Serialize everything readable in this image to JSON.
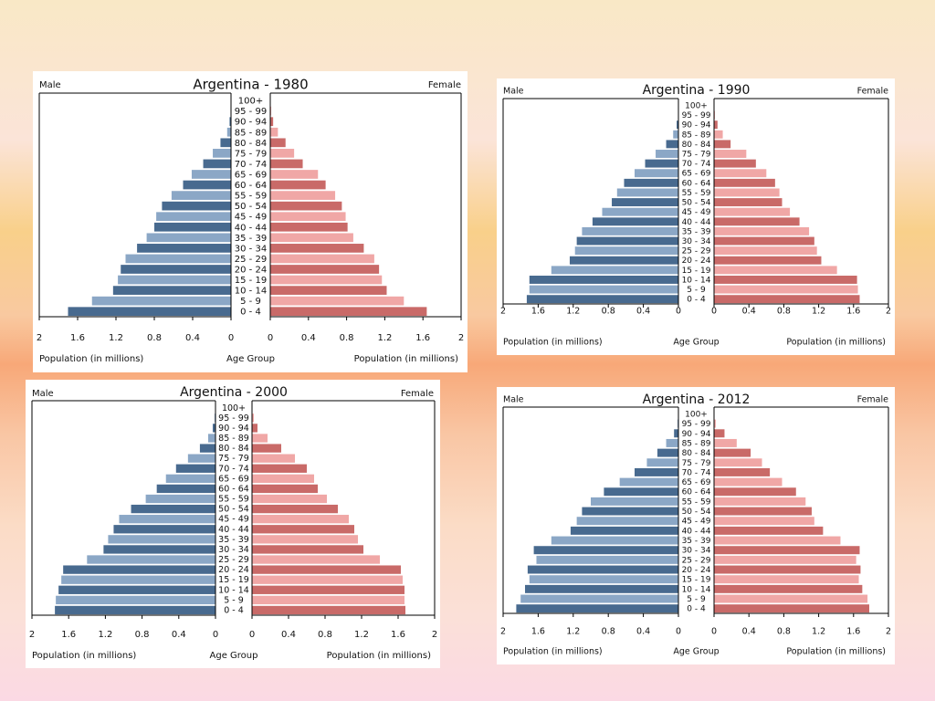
{
  "colors": {
    "male_dark": "#486a8f",
    "male_light": "#8ba7c6",
    "female_dark": "#c96a68",
    "female_light": "#f0a7a6"
  },
  "chart_data": [
    {
      "type": "bar",
      "subtype": "population-pyramid",
      "title": "Argentina - 1980",
      "left_label": "Male",
      "right_label": "Female",
      "xlabel_left": "Population (in millions)",
      "xlabel_center": "Age Group",
      "xlabel_right": "Population (in millions)",
      "xlim": [
        0,
        2
      ],
      "xticks": [
        "2",
        "1.6",
        "1.2",
        "0.8",
        "0.4",
        "0"
      ],
      "xticks_right": [
        "0",
        "0.4",
        "0.8",
        "1.2",
        "1.6",
        "2"
      ],
      "categories": [
        "0 - 4",
        "5 - 9",
        "10 - 14",
        "15 - 19",
        "20 - 24",
        "25 - 29",
        "30 - 34",
        "35 - 39",
        "40 - 44",
        "45 - 49",
        "50 - 54",
        "55 - 59",
        "60 - 64",
        "65 - 69",
        "70 - 74",
        "75 - 79",
        "80 - 84",
        "85 - 89",
        "90 - 94",
        "95 - 99",
        "100+"
      ],
      "series": [
        {
          "name": "Male",
          "values": [
            1.7,
            1.45,
            1.23,
            1.18,
            1.15,
            1.1,
            0.98,
            0.88,
            0.8,
            0.78,
            0.72,
            0.62,
            0.5,
            0.41,
            0.29,
            0.19,
            0.11,
            0.04,
            0.015,
            0.005,
            0.002
          ]
        },
        {
          "name": "Female",
          "values": [
            1.64,
            1.4,
            1.22,
            1.17,
            1.14,
            1.09,
            0.98,
            0.87,
            0.81,
            0.79,
            0.75,
            0.68,
            0.58,
            0.5,
            0.34,
            0.25,
            0.16,
            0.08,
            0.03,
            0.01,
            0.003
          ]
        }
      ]
    },
    {
      "type": "bar",
      "subtype": "population-pyramid",
      "title": "Argentina - 1990",
      "left_label": "Male",
      "right_label": "Female",
      "xlabel_left": "Population (in millions)",
      "xlabel_center": "Age Group",
      "xlabel_right": "Population (in millions)",
      "xlim": [
        0,
        2
      ],
      "xticks": [
        "2",
        "1.6",
        "1.2",
        "0.8",
        "0.4",
        "0"
      ],
      "xticks_right": [
        "0",
        "0.4",
        "0.8",
        "1.2",
        "1.6",
        "2"
      ],
      "categories": [
        "0 - 4",
        "5 - 9",
        "10 - 14",
        "15 - 19",
        "20 - 24",
        "25 - 29",
        "30 - 34",
        "35 - 39",
        "40 - 44",
        "45 - 49",
        "50 - 54",
        "55 - 59",
        "60 - 64",
        "65 - 69",
        "70 - 74",
        "75 - 79",
        "80 - 84",
        "85 - 89",
        "90 - 94",
        "95 - 99",
        "100+"
      ],
      "series": [
        {
          "name": "Male",
          "values": [
            1.73,
            1.7,
            1.7,
            1.45,
            1.24,
            1.18,
            1.16,
            1.1,
            0.98,
            0.87,
            0.76,
            0.7,
            0.62,
            0.5,
            0.38,
            0.26,
            0.14,
            0.06,
            0.02,
            0.005,
            0.002
          ]
        },
        {
          "name": "Female",
          "values": [
            1.67,
            1.65,
            1.64,
            1.41,
            1.23,
            1.18,
            1.15,
            1.09,
            0.98,
            0.87,
            0.78,
            0.75,
            0.7,
            0.6,
            0.48,
            0.37,
            0.19,
            0.1,
            0.04,
            0.01,
            0.003
          ]
        }
      ]
    },
    {
      "type": "bar",
      "subtype": "population-pyramid",
      "title": "Argentina - 2000",
      "left_label": "Male",
      "right_label": "Female",
      "xlabel_left": "Population (in millions)",
      "xlabel_center": "Age Group",
      "xlabel_right": "Population (in millions)",
      "xlim": [
        0,
        2
      ],
      "xticks": [
        "2",
        "1.6",
        "1.2",
        "0.8",
        "0.4",
        "0"
      ],
      "xticks_right": [
        "0",
        "0.4",
        "0.8",
        "1.2",
        "1.6",
        "2"
      ],
      "categories": [
        "0 - 4",
        "5 - 9",
        "10 - 14",
        "15 - 19",
        "20 - 24",
        "25 - 29",
        "30 - 34",
        "35 - 39",
        "40 - 44",
        "45 - 49",
        "50 - 54",
        "55 - 59",
        "60 - 64",
        "65 - 69",
        "70 - 74",
        "75 - 79",
        "80 - 84",
        "85 - 89",
        "90 - 94",
        "95 - 99",
        "100+"
      ],
      "series": [
        {
          "name": "Male",
          "values": [
            1.75,
            1.74,
            1.71,
            1.68,
            1.66,
            1.4,
            1.22,
            1.17,
            1.11,
            1.05,
            0.92,
            0.76,
            0.64,
            0.54,
            0.43,
            0.3,
            0.17,
            0.08,
            0.03,
            0.01,
            0.002
          ]
        },
        {
          "name": "Female",
          "values": [
            1.68,
            1.67,
            1.67,
            1.65,
            1.63,
            1.4,
            1.22,
            1.16,
            1.12,
            1.06,
            0.94,
            0.82,
            0.72,
            0.68,
            0.6,
            0.47,
            0.32,
            0.17,
            0.06,
            0.02,
            0.004
          ]
        }
      ]
    },
    {
      "type": "bar",
      "subtype": "population-pyramid",
      "title": "Argentina - 2012",
      "left_label": "Male",
      "right_label": "Female",
      "xlabel_left": "Population (in millions)",
      "xlabel_center": "Age Group",
      "xlabel_right": "Population (in millions)",
      "xlim": [
        0,
        2
      ],
      "xticks": [
        "2",
        "1.6",
        "1.2",
        "0.8",
        "0.4",
        "0"
      ],
      "xticks_right": [
        "0",
        "0.4",
        "0.8",
        "1.2",
        "1.6",
        "2"
      ],
      "categories": [
        "0 - 4",
        "5 - 9",
        "10 - 14",
        "15 - 19",
        "20 - 24",
        "25 - 29",
        "30 - 34",
        "35 - 39",
        "40 - 44",
        "45 - 49",
        "50 - 54",
        "55 - 59",
        "60 - 64",
        "65 - 69",
        "70 - 74",
        "75 - 79",
        "80 - 84",
        "85 - 89",
        "90 - 94",
        "95 - 99",
        "100+"
      ],
      "series": [
        {
          "name": "Male",
          "values": [
            1.85,
            1.8,
            1.75,
            1.7,
            1.72,
            1.62,
            1.65,
            1.45,
            1.23,
            1.16,
            1.1,
            1.0,
            0.85,
            0.67,
            0.5,
            0.36,
            0.24,
            0.14,
            0.05,
            0.01,
            0.002
          ]
        },
        {
          "name": "Female",
          "values": [
            1.78,
            1.76,
            1.7,
            1.66,
            1.68,
            1.63,
            1.67,
            1.45,
            1.25,
            1.15,
            1.12,
            1.05,
            0.94,
            0.78,
            0.64,
            0.55,
            0.42,
            0.26,
            0.12,
            0.02,
            0.005
          ]
        }
      ]
    }
  ]
}
